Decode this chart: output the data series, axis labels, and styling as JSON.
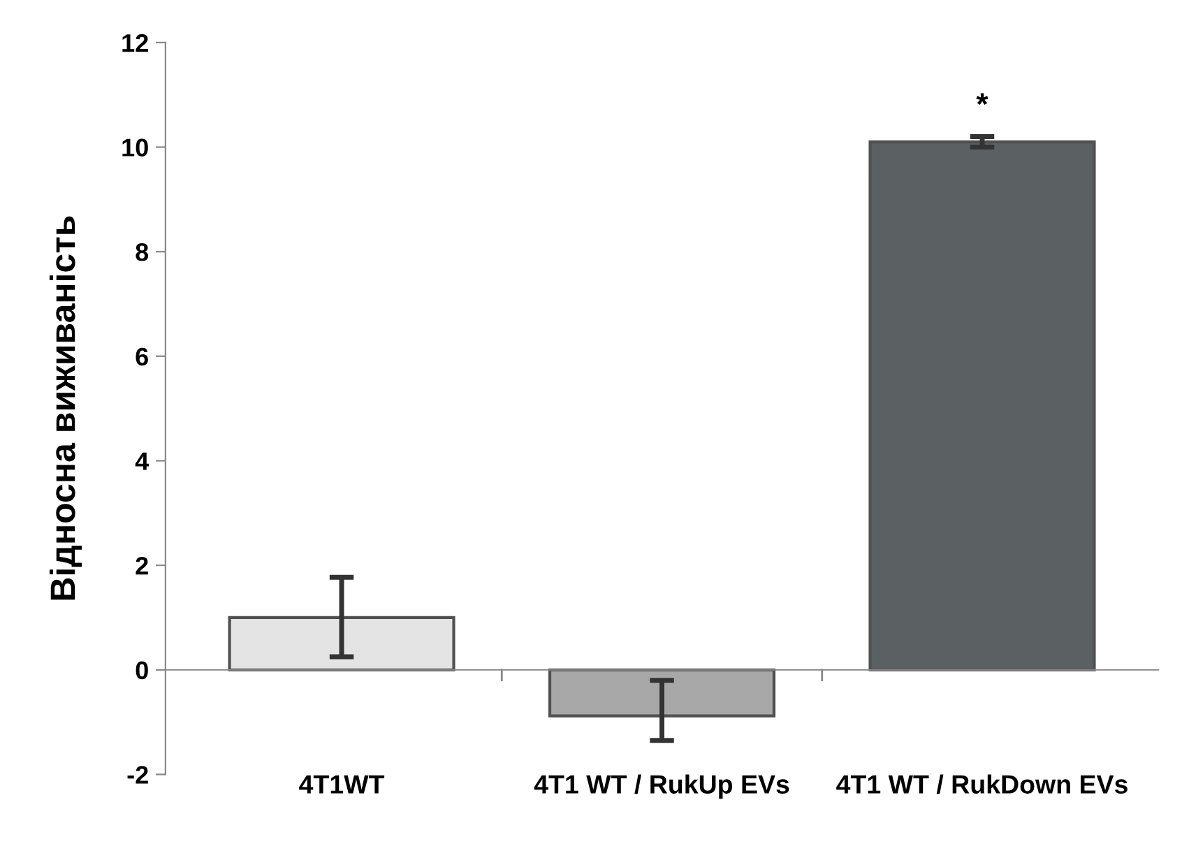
{
  "chart_data": {
    "type": "bar",
    "ylabel": "Відносна виживаність",
    "categories": [
      "4T1WT",
      "4T1 WT / RukUp EVs",
      "4T1 WT / RukDown EVs"
    ],
    "values": [
      1.0,
      -0.88,
      10.1
    ],
    "colors": [
      "#e4e4e4",
      "#a8a8a8",
      "#5b6163"
    ],
    "errors": [
      [
        0.25,
        1.77
      ],
      [
        -1.35,
        -0.2
      ],
      [
        10.0,
        10.2
      ]
    ],
    "ylim": [
      -2,
      12
    ],
    "yticks": [
      -2,
      0,
      2,
      4,
      6,
      8,
      10,
      12
    ],
    "annotations": [
      {
        "text": "*",
        "x": "4T1 WT / RukDown EVs",
        "y": 10.2
      }
    ]
  }
}
